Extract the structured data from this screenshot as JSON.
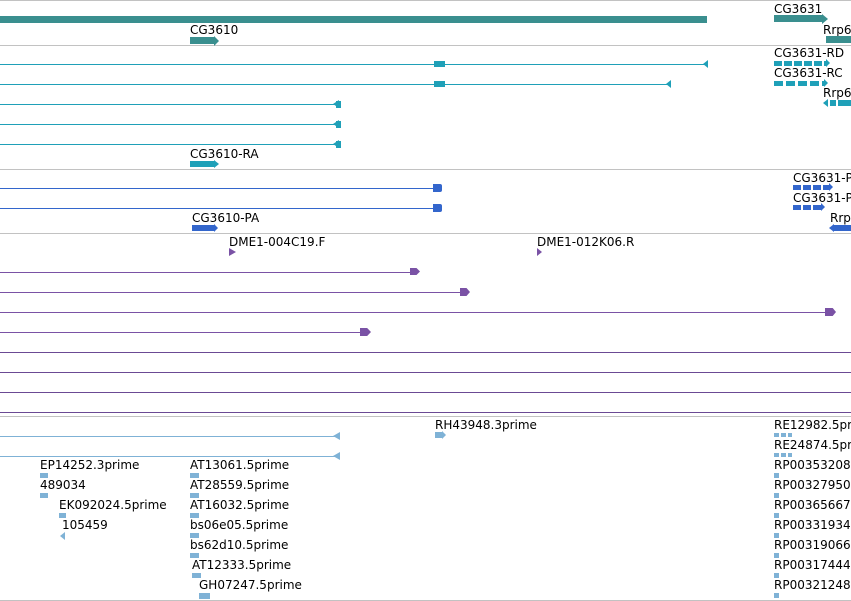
{
  "colors": {
    "gene": "#3a8f8f",
    "transcript": "#1fa0b8",
    "protein": "#3366cc",
    "alignment_dark": "#7a52a5",
    "alignment_line": "#6b4a94",
    "est": "#7fb2d6",
    "separator": "#c2c2c2"
  },
  "gene_track": {
    "labels": [
      "CG3631",
      "CG3610",
      "Rrp6"
    ]
  },
  "transcript_track": {
    "labels": [
      "CG3631-RD",
      "CG3631-RC",
      "Rrp6",
      "CG3610-RA"
    ]
  },
  "protein_track": {
    "labels": [
      "CG3631-P",
      "CG3631-P",
      "CG3610-PA",
      "Rrp"
    ]
  },
  "alignment_track": {
    "labels": [
      "DME1-004C19.F",
      "DME1-012K06.R"
    ]
  },
  "est_track": {
    "labels": [
      "RH43948.3prime",
      "RE12982.5pri",
      "RE24874.5pri",
      "EP14252.3prime",
      "AT13061.5prime",
      "RP00353208",
      "489034",
      "AT28559.5prime",
      "RP00327950",
      "EK092024.5prime",
      "AT16032.5prime",
      "RP00365667",
      "105459",
      "bs06e05.5prime",
      "RP00331934",
      "bs62d10.5prime",
      "RP00319066",
      "AT12333.5prime",
      "RP00317444",
      "GH07247.5prime",
      "RP00321248"
    ]
  }
}
